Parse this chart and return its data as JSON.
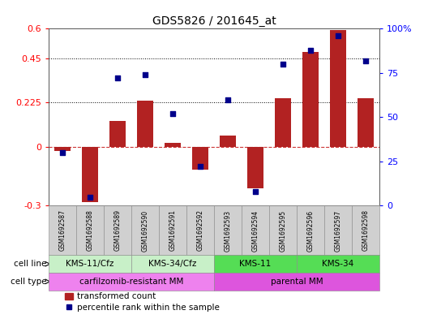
{
  "title": "GDS5826 / 201645_at",
  "samples": [
    "GSM1692587",
    "GSM1692588",
    "GSM1692589",
    "GSM1692590",
    "GSM1692591",
    "GSM1692592",
    "GSM1692593",
    "GSM1692594",
    "GSM1692595",
    "GSM1692596",
    "GSM1692597",
    "GSM1692598"
  ],
  "bar_values": [
    -0.02,
    -0.28,
    0.13,
    0.235,
    0.02,
    -0.115,
    0.055,
    -0.21,
    0.245,
    0.48,
    0.595,
    0.245
  ],
  "scatter_values": [
    30,
    5,
    72,
    74,
    52,
    22,
    60,
    8,
    80,
    88,
    96,
    82
  ],
  "ylim_left": [
    -0.3,
    0.6
  ],
  "ylim_right": [
    0,
    100
  ],
  "yticks_left": [
    -0.3,
    0.0,
    0.225,
    0.45,
    0.6
  ],
  "ytick_labels_left": [
    "-0.3",
    "0",
    "0.225",
    "0.45",
    "0.6"
  ],
  "yticks_right": [
    0,
    25,
    50,
    75,
    100
  ],
  "ytick_labels_right": [
    "0",
    "25",
    "50",
    "75",
    "100%"
  ],
  "hlines": [
    0.225,
    0.45
  ],
  "bar_color": "#b22222",
  "scatter_color": "#00008b",
  "zero_line_color": "#cc3333",
  "cell_line_groups": [
    {
      "label": "KMS-11/Cfz",
      "start": 0,
      "end": 3,
      "color": "#c8f0c8"
    },
    {
      "label": "KMS-34/Cfz",
      "start": 3,
      "end": 6,
      "color": "#c8f0c8"
    },
    {
      "label": "KMS-11",
      "start": 6,
      "end": 9,
      "color": "#55dd55"
    },
    {
      "label": "KMS-34",
      "start": 9,
      "end": 12,
      "color": "#55dd55"
    }
  ],
  "cell_type_groups": [
    {
      "label": "carfilzomib-resistant MM",
      "start": 0,
      "end": 6,
      "color": "#ee82ee"
    },
    {
      "label": "parental MM",
      "start": 6,
      "end": 12,
      "color": "#dd55dd"
    }
  ],
  "legend_bar_label": "transformed count",
  "legend_scatter_label": "percentile rank within the sample",
  "sample_box_color": "#d0d0d0",
  "sample_box_edge": "#888888"
}
